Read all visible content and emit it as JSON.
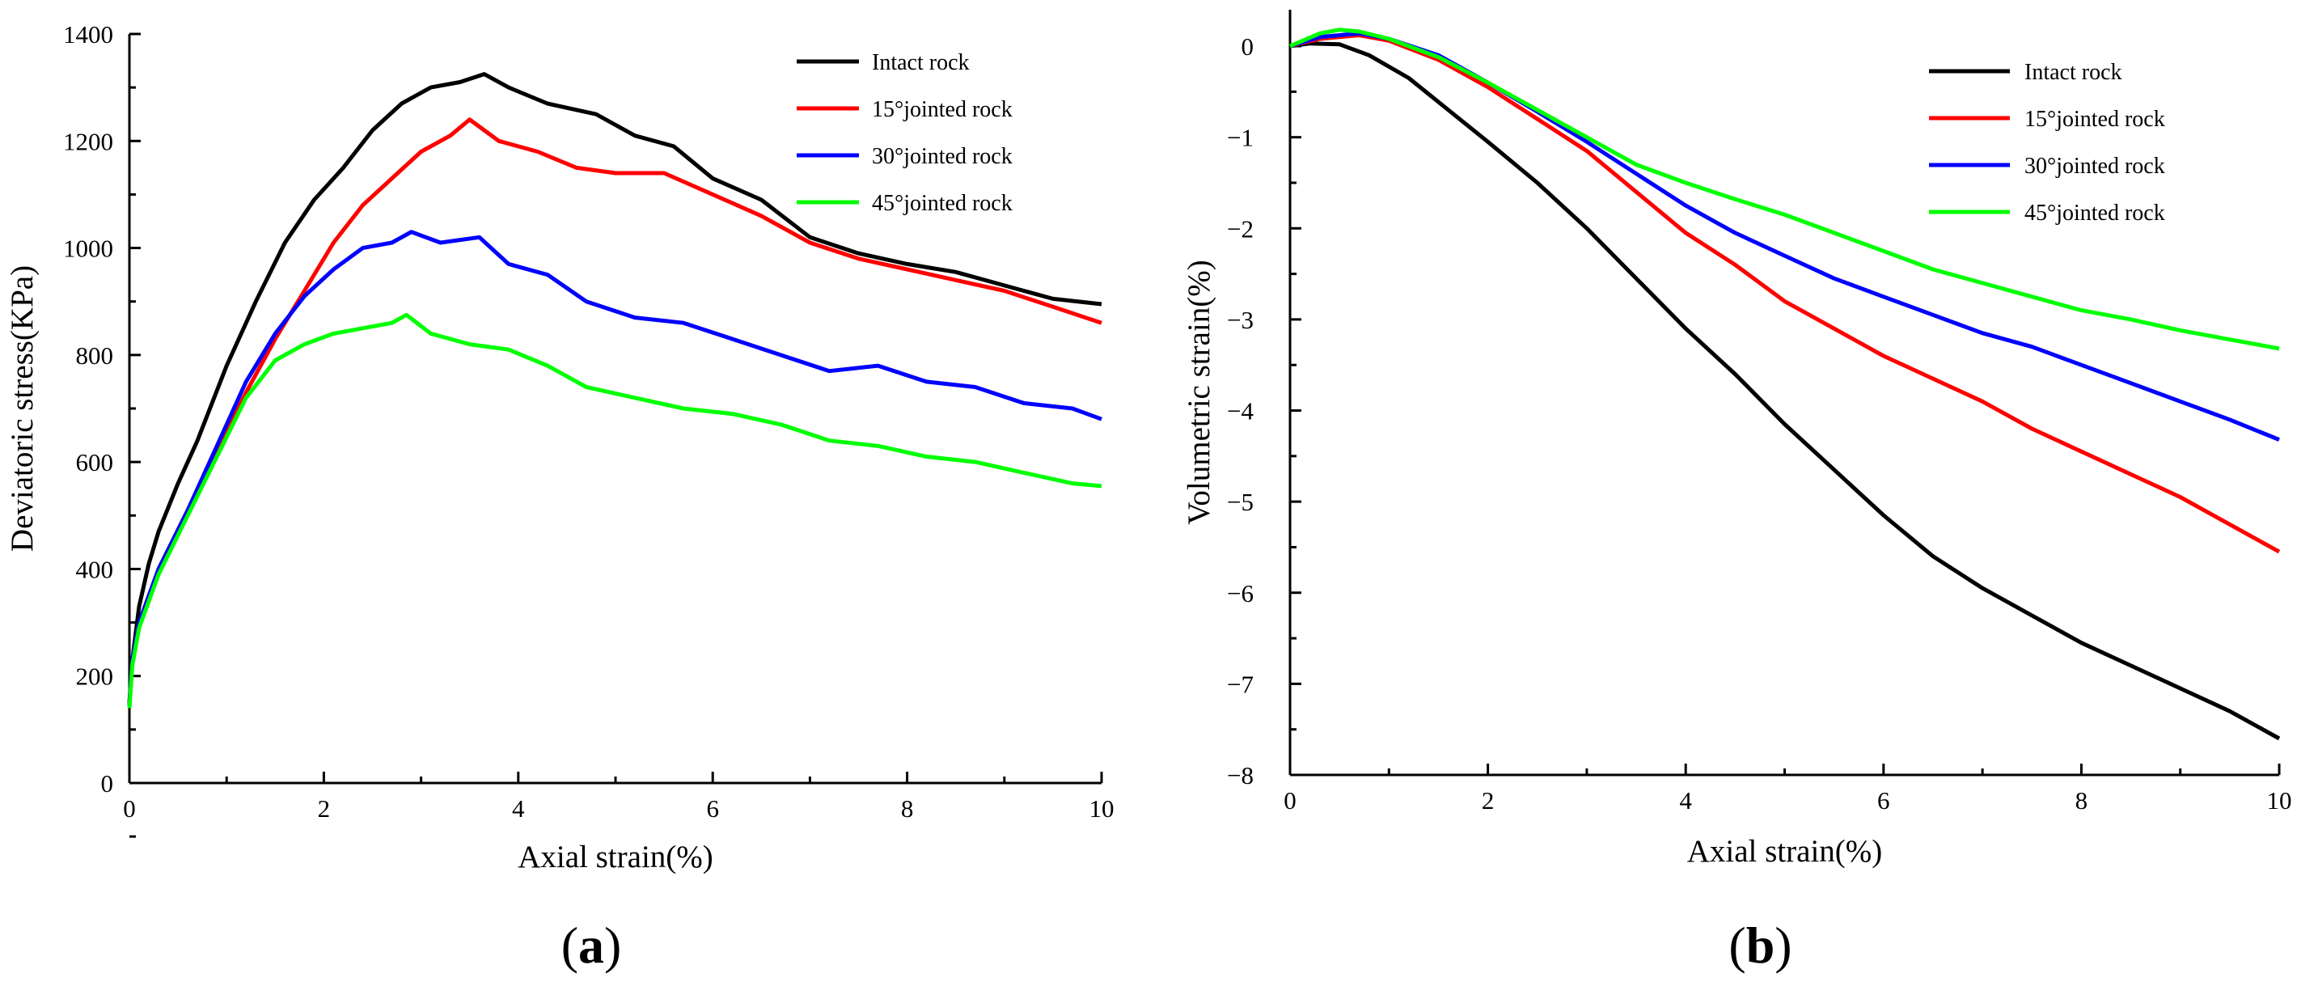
{
  "chart_data": [
    {
      "type": "line",
      "panel": "(a)",
      "panel_open": "(",
      "panel_letter": "a",
      "panel_close": ")",
      "xlabel": "Axial strain(%)",
      "ylabel": "Deviatoric stress(KPa)",
      "xlim": [
        0,
        10
      ],
      "ylim": [
        0,
        1400
      ],
      "xticks": [
        0,
        2,
        4,
        6,
        8,
        10
      ],
      "yticks": [
        0,
        200,
        400,
        600,
        800,
        1000,
        1200,
        1400
      ],
      "xtick_labels": [
        "0",
        "2",
        "4",
        "6",
        "8",
        "10"
      ],
      "ytick_labels": [
        "0",
        "200",
        "400",
        "600",
        "800",
        "1000",
        "1200",
        "1400"
      ],
      "legend_position": "top-right",
      "series": [
        {
          "name": "Intact rock",
          "color": "#000000",
          "x": [
            0,
            0.03,
            0.1,
            0.2,
            0.3,
            0.5,
            0.7,
            1.0,
            1.3,
            1.6,
            1.9,
            2.2,
            2.5,
            2.8,
            3.1,
            3.4,
            3.65,
            3.9,
            4.3,
            4.8,
            5.2,
            5.6,
            6.0,
            6.5,
            7.0,
            7.5,
            8.0,
            8.5,
            9.0,
            9.5,
            10.0
          ],
          "y": [
            150,
            230,
            330,
            410,
            470,
            560,
            640,
            780,
            900,
            1010,
            1090,
            1150,
            1220,
            1270,
            1300,
            1310,
            1325,
            1300,
            1270,
            1250,
            1210,
            1190,
            1130,
            1090,
            1020,
            990,
            970,
            955,
            930,
            905,
            895
          ]
        },
        {
          "name": "15°jointed rock",
          "color": "#ff0000",
          "x": [
            0,
            0.03,
            0.1,
            0.3,
            0.6,
            0.9,
            1.2,
            1.5,
            1.8,
            2.1,
            2.4,
            2.7,
            3.0,
            3.3,
            3.5,
            3.8,
            4.2,
            4.6,
            5.0,
            5.5,
            6.0,
            6.5,
            7.0,
            7.5,
            8.0,
            8.5,
            9.0,
            9.5,
            10.0
          ],
          "y": [
            145,
            230,
            300,
            400,
            510,
            620,
            730,
            830,
            920,
            1010,
            1080,
            1130,
            1180,
            1210,
            1240,
            1200,
            1180,
            1150,
            1140,
            1140,
            1100,
            1060,
            1010,
            980,
            960,
            940,
            920,
            890,
            860
          ]
        },
        {
          "name": "30°jointed rock",
          "color": "#0000ff",
          "x": [
            0,
            0.03,
            0.1,
            0.3,
            0.6,
            0.9,
            1.2,
            1.5,
            1.8,
            2.1,
            2.4,
            2.7,
            2.9,
            3.2,
            3.6,
            3.9,
            4.3,
            4.7,
            5.2,
            5.7,
            6.2,
            6.7,
            7.2,
            7.7,
            8.2,
            8.7,
            9.2,
            9.7,
            10.0
          ],
          "y": [
            145,
            230,
            300,
            400,
            510,
            630,
            750,
            840,
            910,
            960,
            1000,
            1010,
            1030,
            1010,
            1020,
            970,
            950,
            900,
            870,
            860,
            830,
            800,
            770,
            780,
            750,
            740,
            710,
            700,
            680
          ]
        },
        {
          "name": "45°jointed rock",
          "color": "#00ff00",
          "x": [
            0,
            0.03,
            0.1,
            0.3,
            0.6,
            0.9,
            1.2,
            1.5,
            1.8,
            2.1,
            2.4,
            2.7,
            2.85,
            3.1,
            3.5,
            3.9,
            4.3,
            4.7,
            5.2,
            5.7,
            6.2,
            6.7,
            7.2,
            7.7,
            8.2,
            8.7,
            9.2,
            9.7,
            10.0
          ],
          "y": [
            140,
            220,
            290,
            390,
            500,
            610,
            720,
            790,
            820,
            840,
            850,
            860,
            875,
            840,
            820,
            810,
            780,
            740,
            720,
            700,
            690,
            670,
            640,
            630,
            610,
            600,
            580,
            560,
            555
          ]
        }
      ]
    },
    {
      "type": "line",
      "panel": "(b)",
      "panel_open": "(",
      "panel_letter": "b",
      "panel_close": ")",
      "xlabel": "Axial strain(%)",
      "ylabel": "Volumetric strain(%)",
      "xlim": [
        0,
        10
      ],
      "ylim": [
        -8,
        0.4
      ],
      "xticks": [
        0,
        2,
        4,
        6,
        8,
        10
      ],
      "yticks": [
        0,
        -1,
        -2,
        -3,
        -4,
        -5,
        -6,
        -7,
        -8
      ],
      "xtick_labels": [
        "0",
        "2",
        "4",
        "6",
        "8",
        "10"
      ],
      "ytick_labels": [
        "0",
        "−1",
        "−2",
        "−3",
        "−4",
        "−5",
        "−6",
        "−7",
        "−8"
      ],
      "legend_position": "top-right",
      "series": [
        {
          "name": "Intact rock",
          "color": "#000000",
          "x": [
            0,
            0.2,
            0.5,
            0.8,
            1.2,
            1.6,
            2.0,
            2.5,
            3.0,
            3.5,
            4.0,
            4.5,
            5.0,
            5.5,
            6.0,
            6.5,
            7.0,
            7.5,
            8.0,
            8.5,
            9.0,
            9.5,
            10.0
          ],
          "y": [
            0,
            0.03,
            0.02,
            -0.1,
            -0.35,
            -0.7,
            -1.05,
            -1.5,
            -2.0,
            -2.55,
            -3.1,
            -3.6,
            -4.15,
            -4.65,
            -5.15,
            -5.6,
            -5.95,
            -6.25,
            -6.55,
            -6.8,
            -7.05,
            -7.3,
            -7.6
          ]
        },
        {
          "name": "15°jointed rock",
          "color": "#ff0000",
          "x": [
            0,
            0.3,
            0.7,
            1.0,
            1.5,
            2.0,
            2.5,
            3.0,
            3.5,
            4.0,
            4.5,
            5.0,
            5.5,
            6.0,
            6.5,
            7.0,
            7.5,
            8.0,
            8.5,
            9.0,
            9.5,
            10.0
          ],
          "y": [
            0,
            0.08,
            0.12,
            0.06,
            -0.15,
            -0.45,
            -0.8,
            -1.15,
            -1.6,
            -2.05,
            -2.4,
            -2.8,
            -3.1,
            -3.4,
            -3.65,
            -3.9,
            -4.2,
            -4.45,
            -4.7,
            -4.95,
            -5.25,
            -5.55
          ]
        },
        {
          "name": "30°jointed rock",
          "color": "#0000ff",
          "x": [
            0,
            0.3,
            0.7,
            1.0,
            1.5,
            2.0,
            2.5,
            3.0,
            3.5,
            4.0,
            4.5,
            5.0,
            5.5,
            6.0,
            6.5,
            7.0,
            7.5,
            8.0,
            8.5,
            9.0,
            9.5,
            10.0
          ],
          "y": [
            0,
            0.1,
            0.14,
            0.08,
            -0.1,
            -0.4,
            -0.72,
            -1.05,
            -1.4,
            -1.75,
            -2.05,
            -2.3,
            -2.55,
            -2.75,
            -2.95,
            -3.15,
            -3.3,
            -3.5,
            -3.7,
            -3.9,
            -4.1,
            -4.32
          ]
        },
        {
          "name": "45°jointed rock",
          "color": "#00ff00",
          "x": [
            0,
            0.3,
            0.5,
            0.7,
            1.0,
            1.5,
            2.0,
            2.5,
            3.0,
            3.5,
            4.0,
            4.5,
            5.0,
            5.5,
            6.0,
            6.5,
            7.0,
            7.5,
            8.0,
            8.5,
            9.0,
            9.5,
            10.0
          ],
          "y": [
            0,
            0.14,
            0.18,
            0.16,
            0.08,
            -0.12,
            -0.4,
            -0.7,
            -1.0,
            -1.3,
            -1.5,
            -1.68,
            -1.85,
            -2.05,
            -2.25,
            -2.45,
            -2.6,
            -2.75,
            -2.9,
            -3.0,
            -3.12,
            -3.22,
            -3.32
          ]
        }
      ]
    }
  ]
}
